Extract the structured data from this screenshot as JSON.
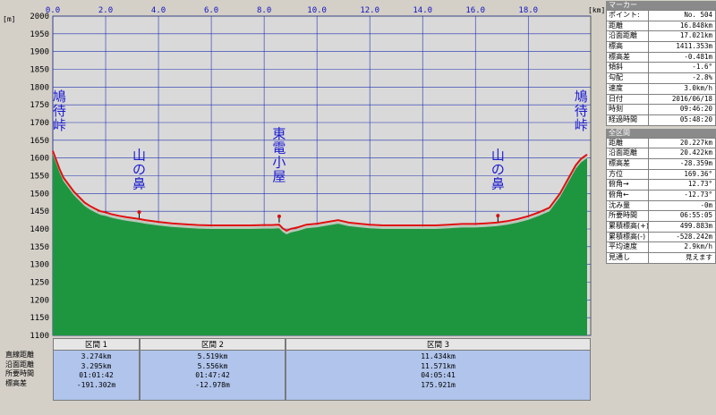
{
  "chart_data": {
    "type": "area",
    "title": "",
    "xlabel": "",
    "ylabel": "",
    "x_unit": "[km]",
    "y_unit": "[m]",
    "xlim": [
      0,
      20.227
    ],
    "ylim": [
      1100,
      2000
    ],
    "x_ticks": [
      "0.0",
      "2.0",
      "4.0",
      "6.0",
      "8.0",
      "10.0",
      "12.0",
      "14.0",
      "16.0",
      "18.0"
    ],
    "x_tick_values": [
      0,
      2,
      4,
      6,
      8,
      10,
      12,
      14,
      16,
      18
    ],
    "y_ticks": [
      "1100",
      "1150",
      "1200",
      "1250",
      "1300",
      "1350",
      "1400",
      "1450",
      "1500",
      "1550",
      "1600",
      "1650",
      "1700",
      "1750",
      "1800",
      "1850",
      "1900",
      "1950",
      "2000"
    ],
    "y_tick_values": [
      1100,
      1150,
      1200,
      1250,
      1300,
      1350,
      1400,
      1450,
      1500,
      1550,
      1600,
      1650,
      1700,
      1750,
      1800,
      1850,
      1900,
      1950,
      2000
    ],
    "grid": true,
    "colors": {
      "plot_bg": "#d9d9d9",
      "terrain": "#1e9640",
      "terrain_light": "#b8c8b8",
      "route": "#e01010",
      "grid": "#2030b0"
    },
    "series": [
      {
        "name": "",
        "x": [
          0.0,
          0.1,
          0.25,
          0.4,
          0.6,
          0.8,
          1.0,
          1.2,
          1.4,
          1.6,
          1.8,
          2.0,
          2.2,
          2.5,
          2.8,
          3.1,
          3.27,
          3.5,
          4.0,
          4.5,
          5.0,
          5.5,
          6.0,
          6.5,
          7.0,
          7.5,
          8.0,
          8.3,
          8.57,
          8.7,
          8.85,
          9.0,
          9.3,
          9.6,
          10.0,
          10.4,
          10.8,
          11.2,
          11.6,
          12.0,
          12.5,
          13.0,
          13.5,
          14.0,
          14.5,
          15.0,
          15.5,
          16.0,
          16.4,
          16.8,
          17.2,
          17.6,
          18.0,
          18.4,
          18.8,
          19.2,
          19.5,
          19.8,
          20.0,
          20.227
        ],
        "y": [
          1620,
          1600,
          1570,
          1545,
          1525,
          1505,
          1490,
          1475,
          1465,
          1457,
          1450,
          1447,
          1442,
          1437,
          1433,
          1430,
          1428,
          1425,
          1420,
          1416,
          1413,
          1411,
          1410,
          1410,
          1410,
          1410,
          1411,
          1411,
          1412,
          1402,
          1395,
          1400,
          1405,
          1412,
          1415,
          1420,
          1425,
          1418,
          1415,
          1412,
          1410,
          1410,
          1410,
          1410,
          1410,
          1412,
          1414,
          1414,
          1416,
          1418,
          1422,
          1428,
          1436,
          1447,
          1460,
          1500,
          1540,
          1580,
          1598,
          1610
        ]
      }
    ],
    "markers": [
      {
        "x": 3.27,
        "y": 1430
      },
      {
        "x": 8.57,
        "y": 1418
      },
      {
        "x": 16.85,
        "y": 1420
      }
    ],
    "annotations": [
      {
        "text": "鳩\n待\n峠",
        "x": 0.25,
        "y": 1680
      },
      {
        "text": "山\nの\n鼻",
        "x": 3.27,
        "y": 1515
      },
      {
        "text": "東\n電\n小\n屋",
        "x": 8.57,
        "y": 1535
      },
      {
        "text": "山\nの\n鼻",
        "x": 16.85,
        "y": 1515
      },
      {
        "text": "鳩\n待\n峠",
        "x": 20.0,
        "y": 1680
      }
    ]
  },
  "marker_panel": {
    "title": "マーカー",
    "rows": [
      {
        "label": "ポイント:",
        "value": "No. 504"
      },
      {
        "label": "距離",
        "value": "16.848km"
      },
      {
        "label": "沿面距離",
        "value": "17.021km"
      },
      {
        "label": "標高",
        "value": "1411.353m"
      },
      {
        "label": "標高差",
        "value": "-0.481m"
      },
      {
        "label": "傾斜",
        "value": "-1.6°"
      },
      {
        "label": "勾配",
        "value": "-2.8%"
      },
      {
        "label": "速度",
        "value": "3.0km/h"
      },
      {
        "label": "日付",
        "value": "2016/06/18"
      },
      {
        "label": "時刻",
        "value": "09:46:20"
      },
      {
        "label": "経過時間",
        "value": "05:48:20"
      }
    ]
  },
  "total_panel": {
    "title": "全区間",
    "rows": [
      {
        "label": "距離",
        "value": "20.227km"
      },
      {
        "label": "沿面距離",
        "value": "20.422km"
      },
      {
        "label": "標高差",
        "value": "-28.359m"
      },
      {
        "label": "方位",
        "value": "169.36°"
      },
      {
        "label": "俯角→",
        "value": "12.73°"
      },
      {
        "label": "俯角←",
        "value": "-12.73°"
      },
      {
        "label": "沈み量",
        "value": "-0m"
      },
      {
        "label": "所要時間",
        "value": "06:55:05"
      },
      {
        "label": "累積標高(+)",
        "value": "499.883m"
      },
      {
        "label": "累積標高(-)",
        "value": "-528.242m"
      },
      {
        "label": "平均速度",
        "value": "2.9km/h"
      },
      {
        "label": "見通し",
        "value": "見えます"
      }
    ]
  },
  "segments": {
    "row_labels": [
      "直線距離",
      "沿面距離",
      "所要時間",
      "標高差"
    ],
    "items": [
      {
        "name": "区間 1",
        "values": [
          "3.274km",
          "3.295km",
          "01:01:42",
          "-191.302m"
        ]
      },
      {
        "name": "区間 2",
        "values": [
          "5.519km",
          "5.556km",
          "01:47:42",
          "-12.978m"
        ]
      },
      {
        "name": "区間 3",
        "values": [
          "11.434km",
          "11.571km",
          "04:05:41",
          "175.921m"
        ]
      }
    ]
  }
}
